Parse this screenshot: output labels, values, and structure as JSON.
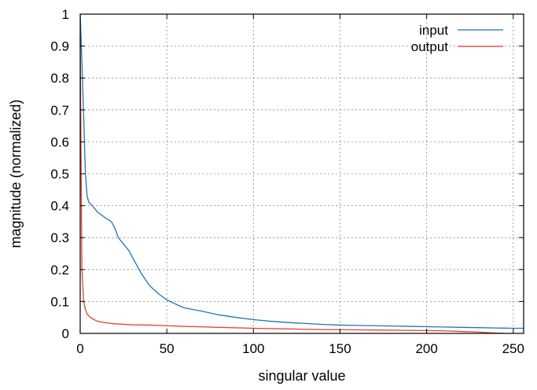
{
  "chart_data": {
    "type": "line",
    "xlabel": "singular value",
    "ylabel": "magnitude (normalized)",
    "xlim": [
      0,
      256
    ],
    "ylim": [
      0,
      1
    ],
    "x_ticks": [
      0,
      50,
      100,
      150,
      200,
      250
    ],
    "y_ticks": [
      0,
      0.1,
      0.2,
      0.3,
      0.4,
      0.5,
      0.6,
      0.7,
      0.8,
      0.9,
      1
    ],
    "grid": true,
    "legend_position": "top-right",
    "series": [
      {
        "name": "input",
        "color": "#1f77b4",
        "x": [
          0,
          1,
          2,
          3,
          4,
          5,
          7,
          10,
          15,
          18,
          20,
          22,
          25,
          28,
          30,
          35,
          40,
          45,
          50,
          55,
          60,
          70,
          80,
          90,
          100,
          110,
          120,
          130,
          140,
          150,
          160,
          170,
          180,
          190,
          200,
          210,
          220,
          230,
          240,
          250,
          256
        ],
        "y": [
          1.0,
          0.85,
          0.68,
          0.5,
          0.43,
          0.41,
          0.4,
          0.38,
          0.36,
          0.35,
          0.33,
          0.3,
          0.28,
          0.26,
          0.24,
          0.19,
          0.15,
          0.125,
          0.105,
          0.092,
          0.08,
          0.07,
          0.058,
          0.05,
          0.043,
          0.038,
          0.034,
          0.031,
          0.028,
          0.026,
          0.025,
          0.024,
          0.023,
          0.022,
          0.021,
          0.02,
          0.019,
          0.018,
          0.017,
          0.016,
          0.016
        ]
      },
      {
        "name": "output",
        "color": "#e8412c",
        "x": [
          0,
          0.5,
          1,
          2,
          3,
          4,
          6,
          8,
          10,
          15,
          20,
          30,
          40,
          50,
          60,
          80,
          100,
          120,
          140,
          160,
          180,
          200,
          210,
          220,
          230,
          240,
          245
        ],
        "y": [
          0.93,
          0.55,
          0.2,
          0.1,
          0.075,
          0.06,
          0.05,
          0.043,
          0.038,
          0.033,
          0.03,
          0.027,
          0.026,
          0.024,
          0.022,
          0.019,
          0.016,
          0.014,
          0.012,
          0.011,
          0.01,
          0.009,
          0.008,
          0.006,
          0.004,
          0.001,
          0.0
        ]
      }
    ]
  }
}
